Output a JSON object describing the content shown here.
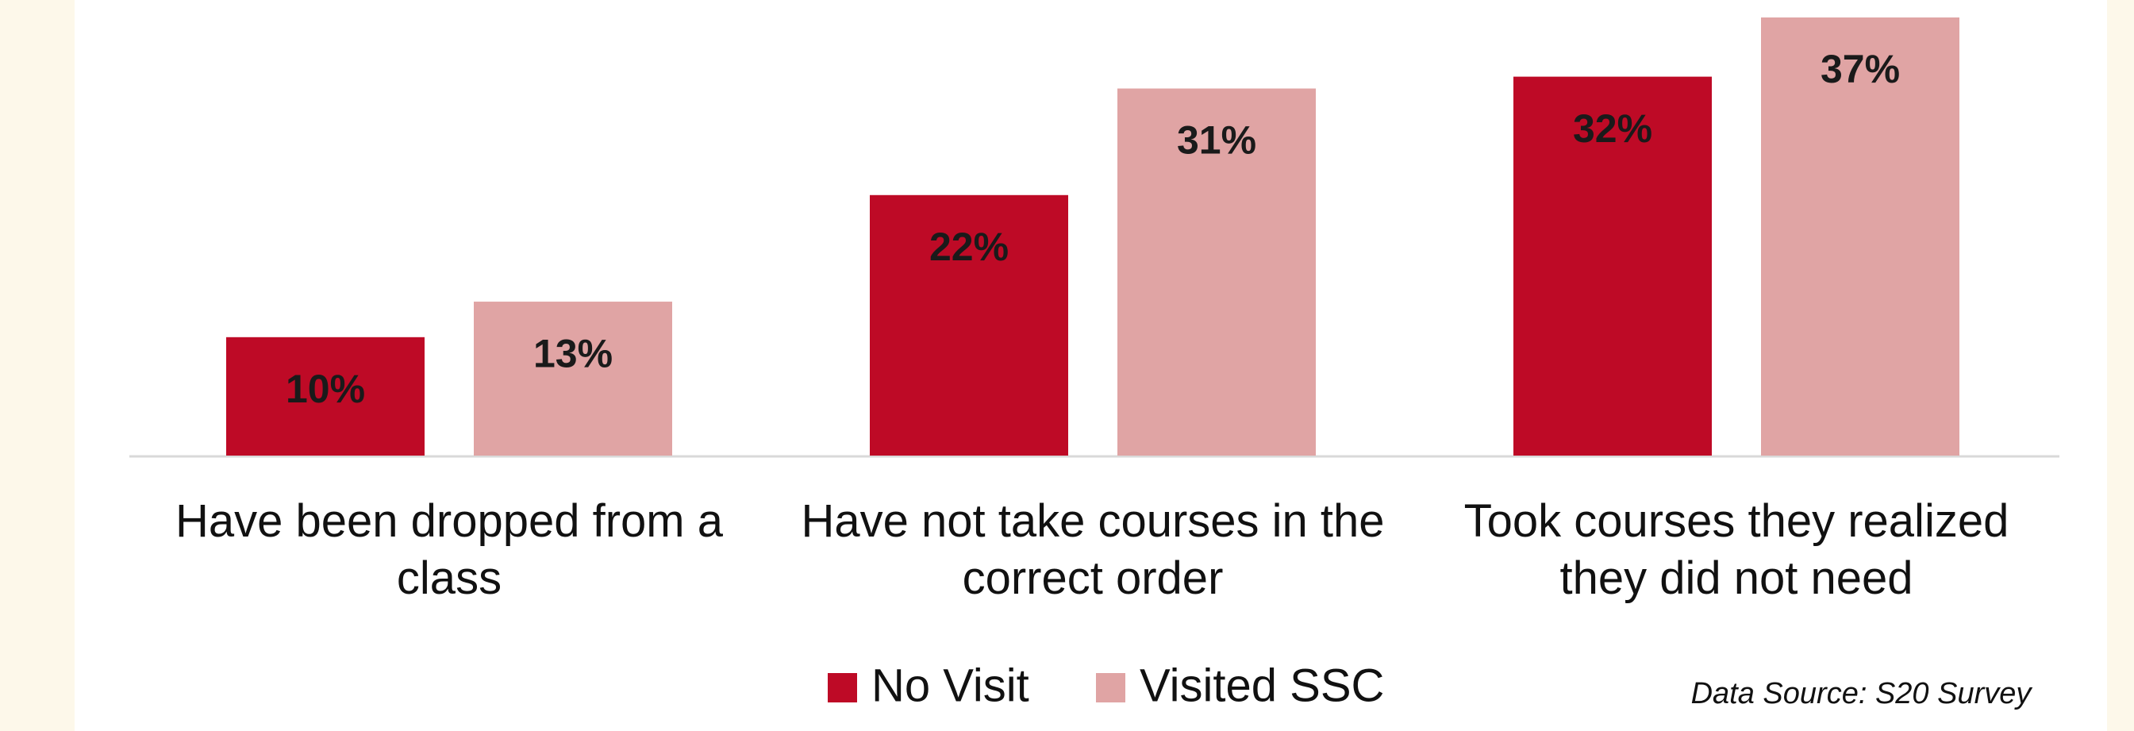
{
  "chart_data": {
    "type": "bar",
    "categories": [
      "Have been dropped from a class",
      "Have not take courses in the correct order",
      "Took courses they realized they did not need"
    ],
    "series": [
      {
        "name": "No Visit",
        "color": "#be0a26",
        "values": [
          10,
          22,
          32
        ],
        "value_labels": [
          "10%",
          "22%",
          "32%"
        ]
      },
      {
        "name": "Visited SSC",
        "color": "#e0a4a4",
        "values": [
          13,
          31,
          37
        ],
        "value_labels": [
          "13%",
          "31%",
          "37%"
        ]
      }
    ],
    "legend": "bottom",
    "source": "Data Source: S20 Survey"
  }
}
